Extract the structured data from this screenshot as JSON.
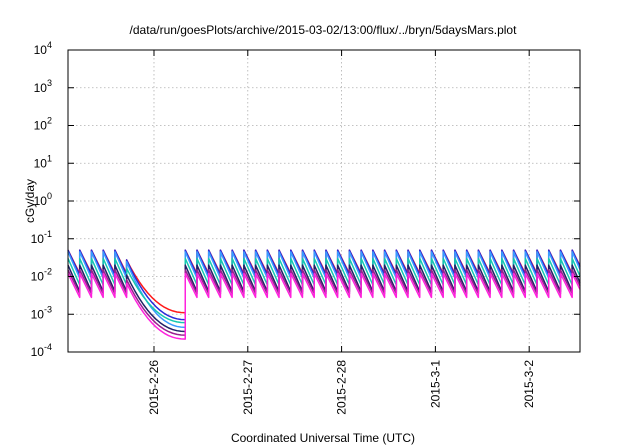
{
  "chart_data": {
    "type": "line",
    "title": "/data/run/goesPlots/archive/2015-03-02/13:00/flux/../bryn/5daysMars.plot",
    "xlabel": "Coordinated Universal Time (UTC)",
    "ylabel": "cGy/day",
    "yscale": "log",
    "ylim": [
      0.0001,
      10000
    ],
    "xlim": [
      "2015-02-25 02:00",
      "2015-03-02 13:00"
    ],
    "grid": true,
    "legend": "none",
    "y_ticks": [
      {
        "base": "10",
        "exp": "-4"
      },
      {
        "base": "10",
        "exp": "-3"
      },
      {
        "base": "10",
        "exp": "-2"
      },
      {
        "base": "10",
        "exp": "-1"
      },
      {
        "base": "10",
        "exp": "0"
      },
      {
        "base": "10",
        "exp": "1"
      },
      {
        "base": "10",
        "exp": "2"
      },
      {
        "base": "10",
        "exp": "3"
      },
      {
        "base": "10",
        "exp": "4"
      }
    ],
    "x_ticks": [
      "2015-2-26",
      "2015-2-27",
      "2015-2-28",
      "2015-3-1",
      "2015-3-2"
    ],
    "x_tick_times": [
      "2015-02-26 00:00",
      "2015-02-27 00:00",
      "2015-02-28 00:00",
      "2015-03-01 00:00",
      "2015-03-02 00:00"
    ],
    "sawtooth_period_hours": 3,
    "segments": [
      {
        "type": "sawtooth",
        "from": "2015-02-25 02:00",
        "to": "2015-02-25 17:00"
      },
      {
        "type": "decay",
        "from": "2015-02-25 17:00",
        "to": "2015-02-26 08:00"
      },
      {
        "type": "jump",
        "at": "2015-02-26 08:00"
      },
      {
        "type": "sawtooth",
        "from": "2015-02-26 08:00",
        "to": "2015-03-02 13:00"
      }
    ],
    "series": [
      {
        "color": "#ff1a1a",
        "peak": 0.05,
        "trough": 0.012,
        "decay_end": 0.0011
      },
      {
        "color": "#2a2ad8",
        "peak": 0.05,
        "trough": 0.011,
        "decay_end": 0.00072
      },
      {
        "color": "#3a9bff",
        "peak": 0.045,
        "trough": 0.009,
        "decay_end": 0.00045
      },
      {
        "color": "#15c8b0",
        "peak": 0.03,
        "trough": 0.006,
        "decay_end": 0.0006
      },
      {
        "color": "#222266",
        "peak": 0.02,
        "trough": 0.004,
        "decay_end": 0.00035
      },
      {
        "color": "#9a2090",
        "peak": 0.015,
        "trough": 0.0035,
        "decay_end": 0.00028
      },
      {
        "color": "#ff22dd",
        "peak": 0.012,
        "trough": 0.0028,
        "decay_end": 0.00022
      }
    ]
  }
}
